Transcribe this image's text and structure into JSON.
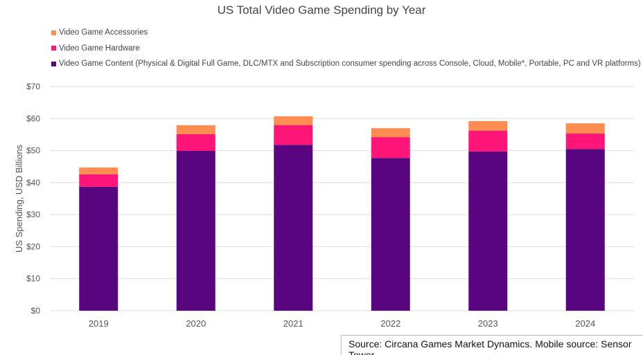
{
  "chart_data": {
    "type": "bar",
    "stacked": true,
    "title": "US Total Video Game Spending by Year",
    "ylabel": "US Spending, USD Billions",
    "xlabel": "",
    "ylim": [
      0,
      70
    ],
    "yticks": [
      "$0",
      "$10",
      "$20",
      "$30",
      "$40",
      "$50",
      "$60",
      "$70"
    ],
    "categories": [
      "2019",
      "2020",
      "2021",
      "2022",
      "2023",
      "2024"
    ],
    "series": [
      {
        "name": "Video Game Content (Physical & Digital Full Game, DLC/MTX and Subscription consumer spending across Console, Cloud, Mobile*, Portable, PC and VR platforms)",
        "color": "#5a0580",
        "values": [
          38.7,
          49.9,
          51.8,
          47.7,
          49.7,
          50.5
        ]
      },
      {
        "name": "Video Game Hardware",
        "color": "#ff1577",
        "values": [
          3.9,
          5.2,
          6.1,
          6.5,
          6.5,
          4.8
        ]
      },
      {
        "name": "Video Game Accessories",
        "color": "#ff8c50",
        "values": [
          2.1,
          2.8,
          2.8,
          2.8,
          3.0,
          3.2
        ]
      }
    ],
    "legend_order": [
      2,
      1,
      0
    ],
    "grid": true,
    "legend_position": "top-left"
  },
  "source": "Source: Circana Games Market Dynamics. Mobile source: Sensor Tower"
}
